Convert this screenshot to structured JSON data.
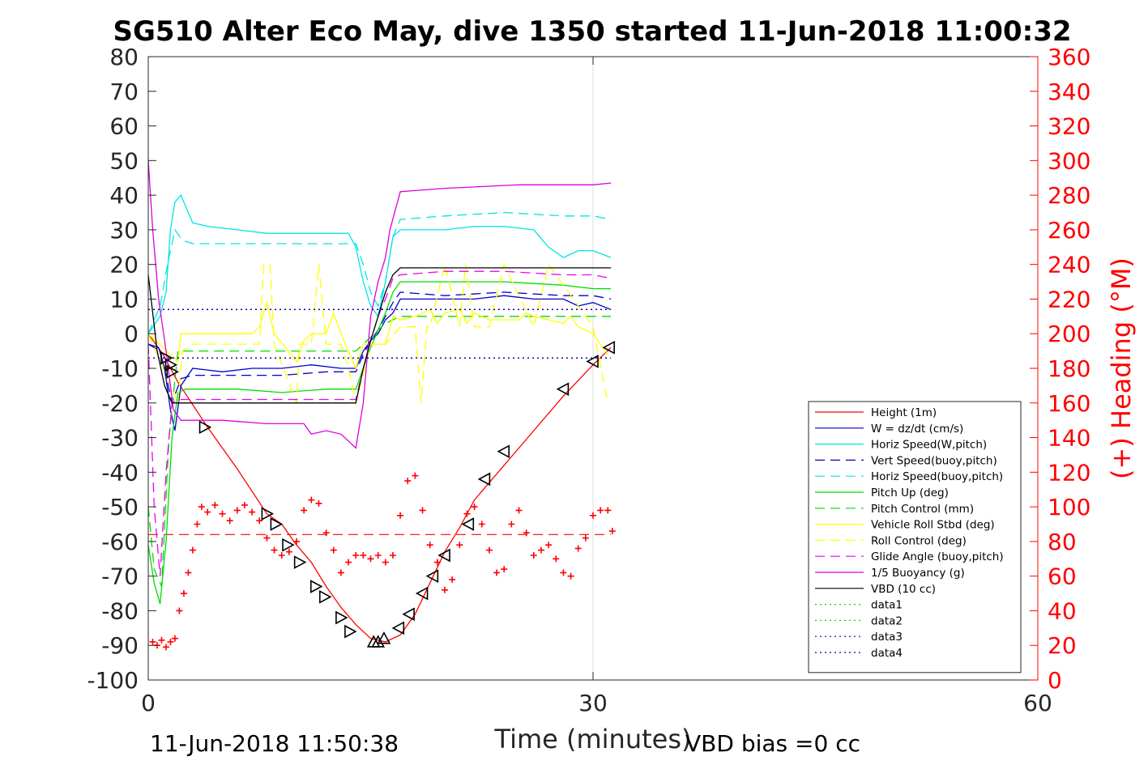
{
  "chart_data": {
    "type": "line",
    "title": "SG510 Alter Eco May, dive 1350 started 11-Jun-2018 11:00:32",
    "xlabel": "Time (minutes)",
    "ylabel": "",
    "y2label": "(+) Heading (°M)",
    "xlim": [
      0,
      60
    ],
    "ylim": [
      -100,
      80
    ],
    "y2lim": [
      0,
      360
    ],
    "x_ticks": [
      "0",
      "30",
      "60"
    ],
    "y_ticks": [
      "80",
      "70",
      "60",
      "50",
      "40",
      "30",
      "20",
      "10",
      "0",
      "-10",
      "-20",
      "-30",
      "-40",
      "-50",
      "-60",
      "-70",
      "-80",
      "-90",
      "-100"
    ],
    "y2_ticks": [
      "360",
      "340",
      "320",
      "300",
      "280",
      "260",
      "240",
      "220",
      "200",
      "180",
      "160",
      "140",
      "120",
      "100",
      "80",
      "60",
      "40",
      "20",
      "0"
    ],
    "grid": "x-only",
    "legend_position": "lower-right",
    "colors": {
      "right_axis": "#ff0000",
      "height": "#ff0000",
      "w": "#0000cc",
      "horiz_speed": "#00e5e5",
      "pitch": "#00dd00",
      "roll": "#ffff00",
      "glide": "#ee00ee",
      "buoyancy": "#dd00dd",
      "vbd": "#000000",
      "heading_marker": "#ff0000"
    },
    "reference_lines": [
      {
        "y": 7,
        "color": "#000099",
        "style": "dotted"
      },
      {
        "y": -7,
        "color": "#000099",
        "style": "dotted"
      },
      {
        "y": -58,
        "color": "#ff0000",
        "style": "dashed"
      }
    ],
    "series": [
      {
        "name": "Height (1m)",
        "color": "#ff0000",
        "style": "solid",
        "axis": "left",
        "x": [
          0,
          1,
          2,
          4,
          6,
          8,
          9,
          10,
          11,
          12,
          13,
          14,
          15,
          16,
          17,
          18,
          19,
          20,
          21,
          22,
          24,
          26,
          28,
          30,
          31.2
        ],
        "y": [
          0,
          -6,
          -14,
          -27,
          -39,
          -52,
          -55,
          -61,
          -66,
          -73,
          -79,
          -84,
          -88,
          -89,
          -87,
          -81,
          -72,
          -63,
          -56,
          -48,
          -38,
          -28,
          -18,
          -9,
          -4
        ]
      },
      {
        "name": "W = dz/dt (cm/s)",
        "color": "#0000cc",
        "style": "solid",
        "axis": "left",
        "x": [
          0,
          0.7,
          1.1,
          1.5,
          1.8,
          2.2,
          3,
          5,
          7,
          9,
          11,
          13,
          14,
          14.5,
          15,
          15.5,
          16,
          16.5,
          17,
          18,
          20,
          22,
          24,
          26,
          28,
          29,
          30,
          31.2
        ],
        "y": [
          -3,
          -4,
          -10,
          -22,
          -28,
          -15,
          -10,
          -11,
          -10,
          -10,
          -9,
          -10,
          -10,
          -5,
          -2,
          0,
          4,
          6,
          10,
          10,
          10,
          10,
          11,
          10,
          10,
          8,
          9,
          7
        ]
      },
      {
        "name": "Horiz Speed(W,pitch)",
        "color": "#00e5e5",
        "style": "solid",
        "axis": "left",
        "x": [
          0,
          0.8,
          1.2,
          1.5,
          1.8,
          2.2,
          3,
          4,
          6,
          8,
          10,
          12,
          13.5,
          14,
          14.5,
          15,
          15.5,
          16,
          16.5,
          17,
          18,
          20,
          22,
          24,
          26,
          27,
          28,
          29,
          30,
          31.2
        ],
        "y": [
          0,
          5,
          12,
          30,
          38,
          40,
          32,
          31,
          30,
          29,
          29,
          29,
          29,
          25,
          15,
          8,
          5,
          15,
          28,
          30,
          30,
          30,
          31,
          31,
          30,
          25,
          22,
          24,
          24,
          22
        ]
      },
      {
        "name": "Vert Speed(buoy,pitch)",
        "color": "#0000cc",
        "style": "dashed",
        "axis": "left",
        "x": [
          0,
          0.8,
          1.2,
          1.6,
          2.2,
          3,
          6,
          9,
          12,
          14,
          14.5,
          15,
          15.5,
          16,
          16.5,
          17,
          20,
          24,
          28,
          30,
          31.2
        ],
        "y": [
          -3,
          -5,
          -12,
          -20,
          -13,
          -12,
          -12,
          -12,
          -11,
          -11,
          -6,
          -2,
          1,
          5,
          9,
          12,
          11,
          12,
          11,
          11,
          10
        ]
      },
      {
        "name": "Horiz Speed(buoy,pitch)",
        "color": "#00e5e5",
        "style": "dashed",
        "axis": "left",
        "x": [
          0,
          0.8,
          1.3,
          1.8,
          2.3,
          3,
          6,
          9,
          12,
          14,
          14.5,
          15,
          15.5,
          16,
          16.5,
          17,
          20,
          24,
          28,
          30,
          31.2
        ],
        "y": [
          0,
          8,
          20,
          30,
          27,
          26,
          26,
          26,
          26,
          26,
          20,
          12,
          8,
          15,
          28,
          33,
          34,
          35,
          34,
          34,
          33
        ]
      },
      {
        "name": "Pitch Up (deg)",
        "color": "#00dd00",
        "style": "solid",
        "axis": "left",
        "x": [
          0,
          0.4,
          0.8,
          1.2,
          1.6,
          2,
          2.5,
          3,
          6,
          9,
          12,
          14,
          14.5,
          15,
          15.5,
          16,
          16.5,
          17,
          20,
          24,
          28,
          30,
          31.2
        ],
        "y": [
          -61,
          -72,
          -78,
          -60,
          -30,
          -17,
          -16,
          -16,
          -16,
          -17,
          -16,
          -16,
          -10,
          -4,
          1,
          6,
          12,
          15,
          15,
          15,
          14,
          13,
          13
        ]
      },
      {
        "name": "Pitch Control (mm)",
        "color": "#00dd00",
        "style": "dashed",
        "axis": "left",
        "x": [
          0,
          0.4,
          0.9,
          1.4,
          2,
          3,
          8,
          12,
          14,
          15,
          16,
          17,
          20,
          24,
          28,
          31.2
        ],
        "y": [
          -50,
          -68,
          -73,
          -30,
          -5,
          -5,
          -5,
          -5,
          -5,
          -1,
          3,
          5,
          5,
          5,
          5,
          5
        ]
      },
      {
        "name": "Vehicle Roll Stbd (deg)",
        "color": "#ffff00",
        "style": "solid",
        "axis": "left",
        "x": [
          0,
          2,
          2.2,
          3,
          7,
          7.5,
          8,
          8.5,
          10,
          10.5,
          11,
          12,
          12.5,
          13,
          14,
          14.5,
          15,
          16,
          16.5,
          17,
          18,
          19,
          19.5,
          20,
          21,
          21.5,
          22,
          23,
          25,
          25.5,
          26,
          27,
          28,
          28.5,
          29,
          30,
          31
        ],
        "y": [
          0,
          -8,
          0,
          0,
          0,
          2,
          9,
          0,
          -8,
          -2,
          0,
          0,
          6,
          0,
          -10,
          -3,
          -3,
          -3,
          5,
          4,
          5,
          7,
          3,
          6,
          7,
          3,
          6,
          4,
          4,
          6,
          5,
          4,
          3,
          5,
          2,
          0,
          -6
        ]
      },
      {
        "name": "Roll Control (deg)",
        "color": "#ffff00",
        "style": "dashed",
        "axis": "left",
        "x": [
          0,
          2,
          2.3,
          3,
          7.5,
          7.8,
          8.2,
          8.5,
          10,
          10.2,
          11,
          11.5,
          12,
          13,
          13.5,
          14,
          15,
          16,
          17,
          18,
          18.4,
          18.8,
          19,
          20,
          21,
          21.4,
          22,
          23,
          24,
          26,
          27,
          30,
          31
        ],
        "y": [
          0,
          -20,
          -5,
          -3,
          -3,
          20,
          20,
          -3,
          -20,
          -3,
          -3,
          20,
          -3,
          -3,
          -10,
          -20,
          -3,
          -3,
          2,
          2,
          -20,
          2,
          2,
          20,
          2,
          20,
          2,
          2,
          20,
          2,
          20,
          2,
          -20
        ]
      },
      {
        "name": "Glide Angle (buoy,pitch)",
        "color": "#ee00ee",
        "style": "dashed",
        "axis": "left",
        "x": [
          0,
          0.4,
          0.8,
          1.2,
          1.6,
          2,
          3,
          6,
          9,
          12,
          14,
          14.5,
          15,
          15.5,
          16,
          16.5,
          17,
          20,
          24,
          28,
          30,
          31.2
        ],
        "y": [
          -3,
          -50,
          -70,
          -40,
          -20,
          -19,
          -19,
          -19,
          -19,
          -19,
          -19,
          -10,
          -2,
          5,
          10,
          16,
          17,
          18,
          18,
          17,
          17,
          16
        ]
      },
      {
        "name": "1/5 Buoyancy (g)",
        "color": "#dd00dd",
        "style": "solid",
        "axis": "left",
        "x": [
          0,
          0.3,
          0.7,
          1.2,
          1.7,
          2.2,
          5,
          8,
          10.5,
          11,
          12,
          13,
          13.5,
          14,
          14.5,
          15,
          15.5,
          16,
          16.3,
          17,
          20,
          25,
          30,
          31.2
        ],
        "y": [
          50,
          30,
          10,
          -5,
          -22,
          -25,
          -25,
          -26,
          -26,
          -29,
          -28,
          -29,
          -31,
          -33,
          -20,
          5,
          15,
          22,
          30,
          41,
          42,
          43,
          43,
          43.5
        ]
      },
      {
        "name": "VBD (10 cc)",
        "color": "#000000",
        "style": "solid",
        "axis": "left",
        "x": [
          0,
          0.6,
          1.1,
          1.6,
          2.1,
          3,
          6,
          9,
          12,
          14,
          14.5,
          15,
          15.5,
          16,
          16.5,
          17,
          20,
          25,
          31.2
        ],
        "y": [
          17,
          -5,
          -15,
          -20,
          -20,
          -20,
          -20,
          -20,
          -20,
          -20,
          -10,
          -2,
          5,
          12,
          17,
          19,
          19,
          19,
          19
        ]
      },
      {
        "name": "data1",
        "color": "#00dd00",
        "style": "dotted",
        "axis": "left",
        "x": [],
        "y": []
      },
      {
        "name": "data2",
        "color": "#00dd00",
        "style": "dotted",
        "axis": "left",
        "x": [],
        "y": []
      },
      {
        "name": "data3",
        "color": "#000099",
        "style": "dotted",
        "axis": "left",
        "x": [
          0,
          31.2
        ],
        "y": [
          7,
          7
        ]
      },
      {
        "name": "data4",
        "color": "#000099",
        "style": "dotted",
        "axis": "left",
        "x": [
          0,
          31.2
        ],
        "y": [
          -7,
          -7
        ]
      }
    ],
    "heading_series": {
      "name": "Heading",
      "color": "#ff0000",
      "marker": "+",
      "axis": "right",
      "x": [
        0.3,
        0.6,
        0.9,
        1.2,
        1.5,
        1.8,
        2.1,
        2.4,
        2.7,
        3.0,
        3.3,
        3.6,
        4.0,
        4.5,
        5.0,
        5.5,
        6.0,
        6.5,
        7.0,
        7.5,
        8.0,
        8.5,
        9.0,
        9.5,
        10.0,
        10.5,
        11.0,
        11.5,
        12.0,
        12.5,
        13.0,
        13.5,
        14.0,
        14.5,
        15.0,
        15.5,
        16.0,
        16.5,
        17.0,
        17.5,
        18.0,
        18.5,
        19.0,
        19.5,
        20.0,
        20.5,
        21.0,
        21.5,
        22.0,
        22.5,
        23.0,
        23.5,
        24.0,
        24.5,
        25.0,
        25.5,
        26.0,
        26.5,
        27.0,
        27.5,
        28.0,
        28.5,
        29.0,
        29.5,
        30.0,
        30.5,
        31.0,
        31.3
      ],
      "y": [
        22,
        20,
        23,
        19,
        22,
        24,
        40,
        50,
        62,
        75,
        90,
        100,
        97,
        101,
        96,
        92,
        98,
        101,
        97,
        92,
        82,
        75,
        72,
        74,
        80,
        98,
        104,
        102,
        85,
        75,
        62,
        68,
        72,
        72,
        70,
        72,
        68,
        72,
        95,
        115,
        118,
        98,
        78,
        68,
        52,
        58,
        78,
        96,
        100,
        90,
        75,
        62,
        64,
        90,
        98,
        85,
        72,
        75,
        78,
        70,
        62,
        60,
        76,
        82,
        95,
        98,
        98,
        86
      ]
    },
    "triangle_markers": {
      "x": [
        1.2,
        1.5,
        1.6,
        3.8,
        8.0,
        8.6,
        9.4,
        10.2,
        11.3,
        11.9,
        13.0,
        13.6,
        15.2,
        15.5,
        15.9,
        16.9,
        17.6,
        18.5,
        19.2,
        20.0,
        21.6,
        22.7,
        24.0,
        28.0,
        30.0,
        31.1
      ],
      "y": [
        -7,
        -9,
        -11,
        -27,
        -52,
        -55,
        -61,
        -66,
        -73,
        -76,
        -82,
        -86,
        -89,
        -89,
        -88,
        -85,
        -81,
        -75,
        -70,
        -64,
        -55,
        -42,
        -34,
        -16,
        -8,
        -4
      ]
    },
    "footer_left": "11-Jun-2018 11:50:38",
    "footer_right": "VBD bias =0 cc"
  }
}
